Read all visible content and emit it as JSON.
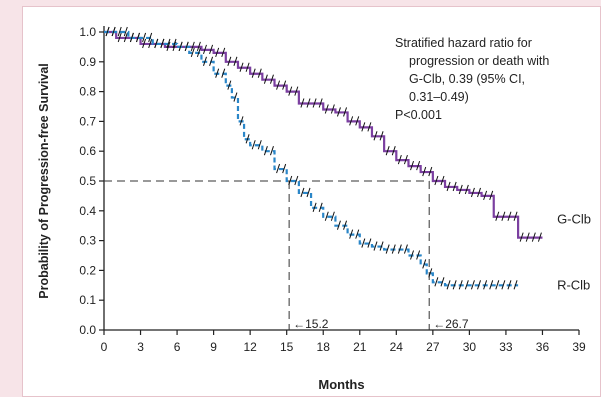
{
  "chart_data": {
    "type": "line",
    "title": "",
    "xlabel": "Months",
    "ylabel": "Probability of Progression-free Survival",
    "xlim": [
      0,
      39
    ],
    "ylim": [
      0,
      1.0
    ],
    "x_ticks": [
      "0",
      "3",
      "6",
      "9",
      "12",
      "15",
      "18",
      "21",
      "24",
      "27",
      "30",
      "33",
      "36",
      "39"
    ],
    "y_ticks": [
      "0.0",
      "0.1",
      "0.2",
      "0.3",
      "0.4",
      "0.5",
      "0.6",
      "0.7",
      "0.8",
      "0.9",
      "1.0"
    ],
    "grid": false,
    "series": [
      {
        "name": "G-Clb",
        "color": "#7b3fa0",
        "style": "solid-step",
        "x": [
          0,
          1,
          3,
          5,
          7,
          8,
          9,
          10,
          11,
          12,
          13,
          14,
          15,
          16,
          17,
          18,
          19,
          20,
          21,
          22,
          23,
          24,
          25,
          26,
          27,
          28,
          29,
          30,
          31,
          32,
          33,
          34,
          35,
          36
        ],
        "y": [
          1.0,
          0.98,
          0.96,
          0.95,
          0.95,
          0.94,
          0.93,
          0.9,
          0.88,
          0.86,
          0.84,
          0.82,
          0.8,
          0.76,
          0.76,
          0.74,
          0.73,
          0.7,
          0.68,
          0.65,
          0.6,
          0.57,
          0.55,
          0.53,
          0.5,
          0.48,
          0.47,
          0.46,
          0.45,
          0.38,
          0.38,
          0.31,
          0.31,
          0.31
        ]
      },
      {
        "name": "R-Clb",
        "color": "#2a86c8",
        "style": "dashed-step",
        "x": [
          0,
          2,
          4,
          6,
          7,
          8,
          9,
          10,
          10.5,
          11,
          11.5,
          12,
          13,
          14,
          15,
          16,
          17,
          18,
          19,
          20,
          21,
          22,
          23,
          24,
          25,
          26,
          26.5,
          27,
          28,
          29,
          31,
          33,
          34
        ],
        "y": [
          1.0,
          0.98,
          0.96,
          0.95,
          0.93,
          0.9,
          0.86,
          0.82,
          0.78,
          0.7,
          0.64,
          0.62,
          0.6,
          0.54,
          0.5,
          0.46,
          0.41,
          0.38,
          0.35,
          0.32,
          0.29,
          0.28,
          0.27,
          0.27,
          0.25,
          0.22,
          0.19,
          0.16,
          0.15,
          0.15,
          0.15,
          0.15,
          0.15
        ]
      }
    ],
    "medians": [
      {
        "x": 15.2,
        "label": "15.2"
      },
      {
        "x": 26.7,
        "label": "26.7"
      }
    ],
    "reference_y": 0.5,
    "annotation_lines": [
      "Stratified hazard ratio for",
      "progression or death with",
      "G-Clb, 0.39 (95% CI,",
      "0.31–0.49)",
      "P<0.001"
    ],
    "series_labels": [
      {
        "text": "G-Clb",
        "x": 37.2,
        "y": 0.37
      },
      {
        "text": "R-Clb",
        "x": 37.2,
        "y": 0.15
      }
    ],
    "arrow_glyph": "←"
  }
}
